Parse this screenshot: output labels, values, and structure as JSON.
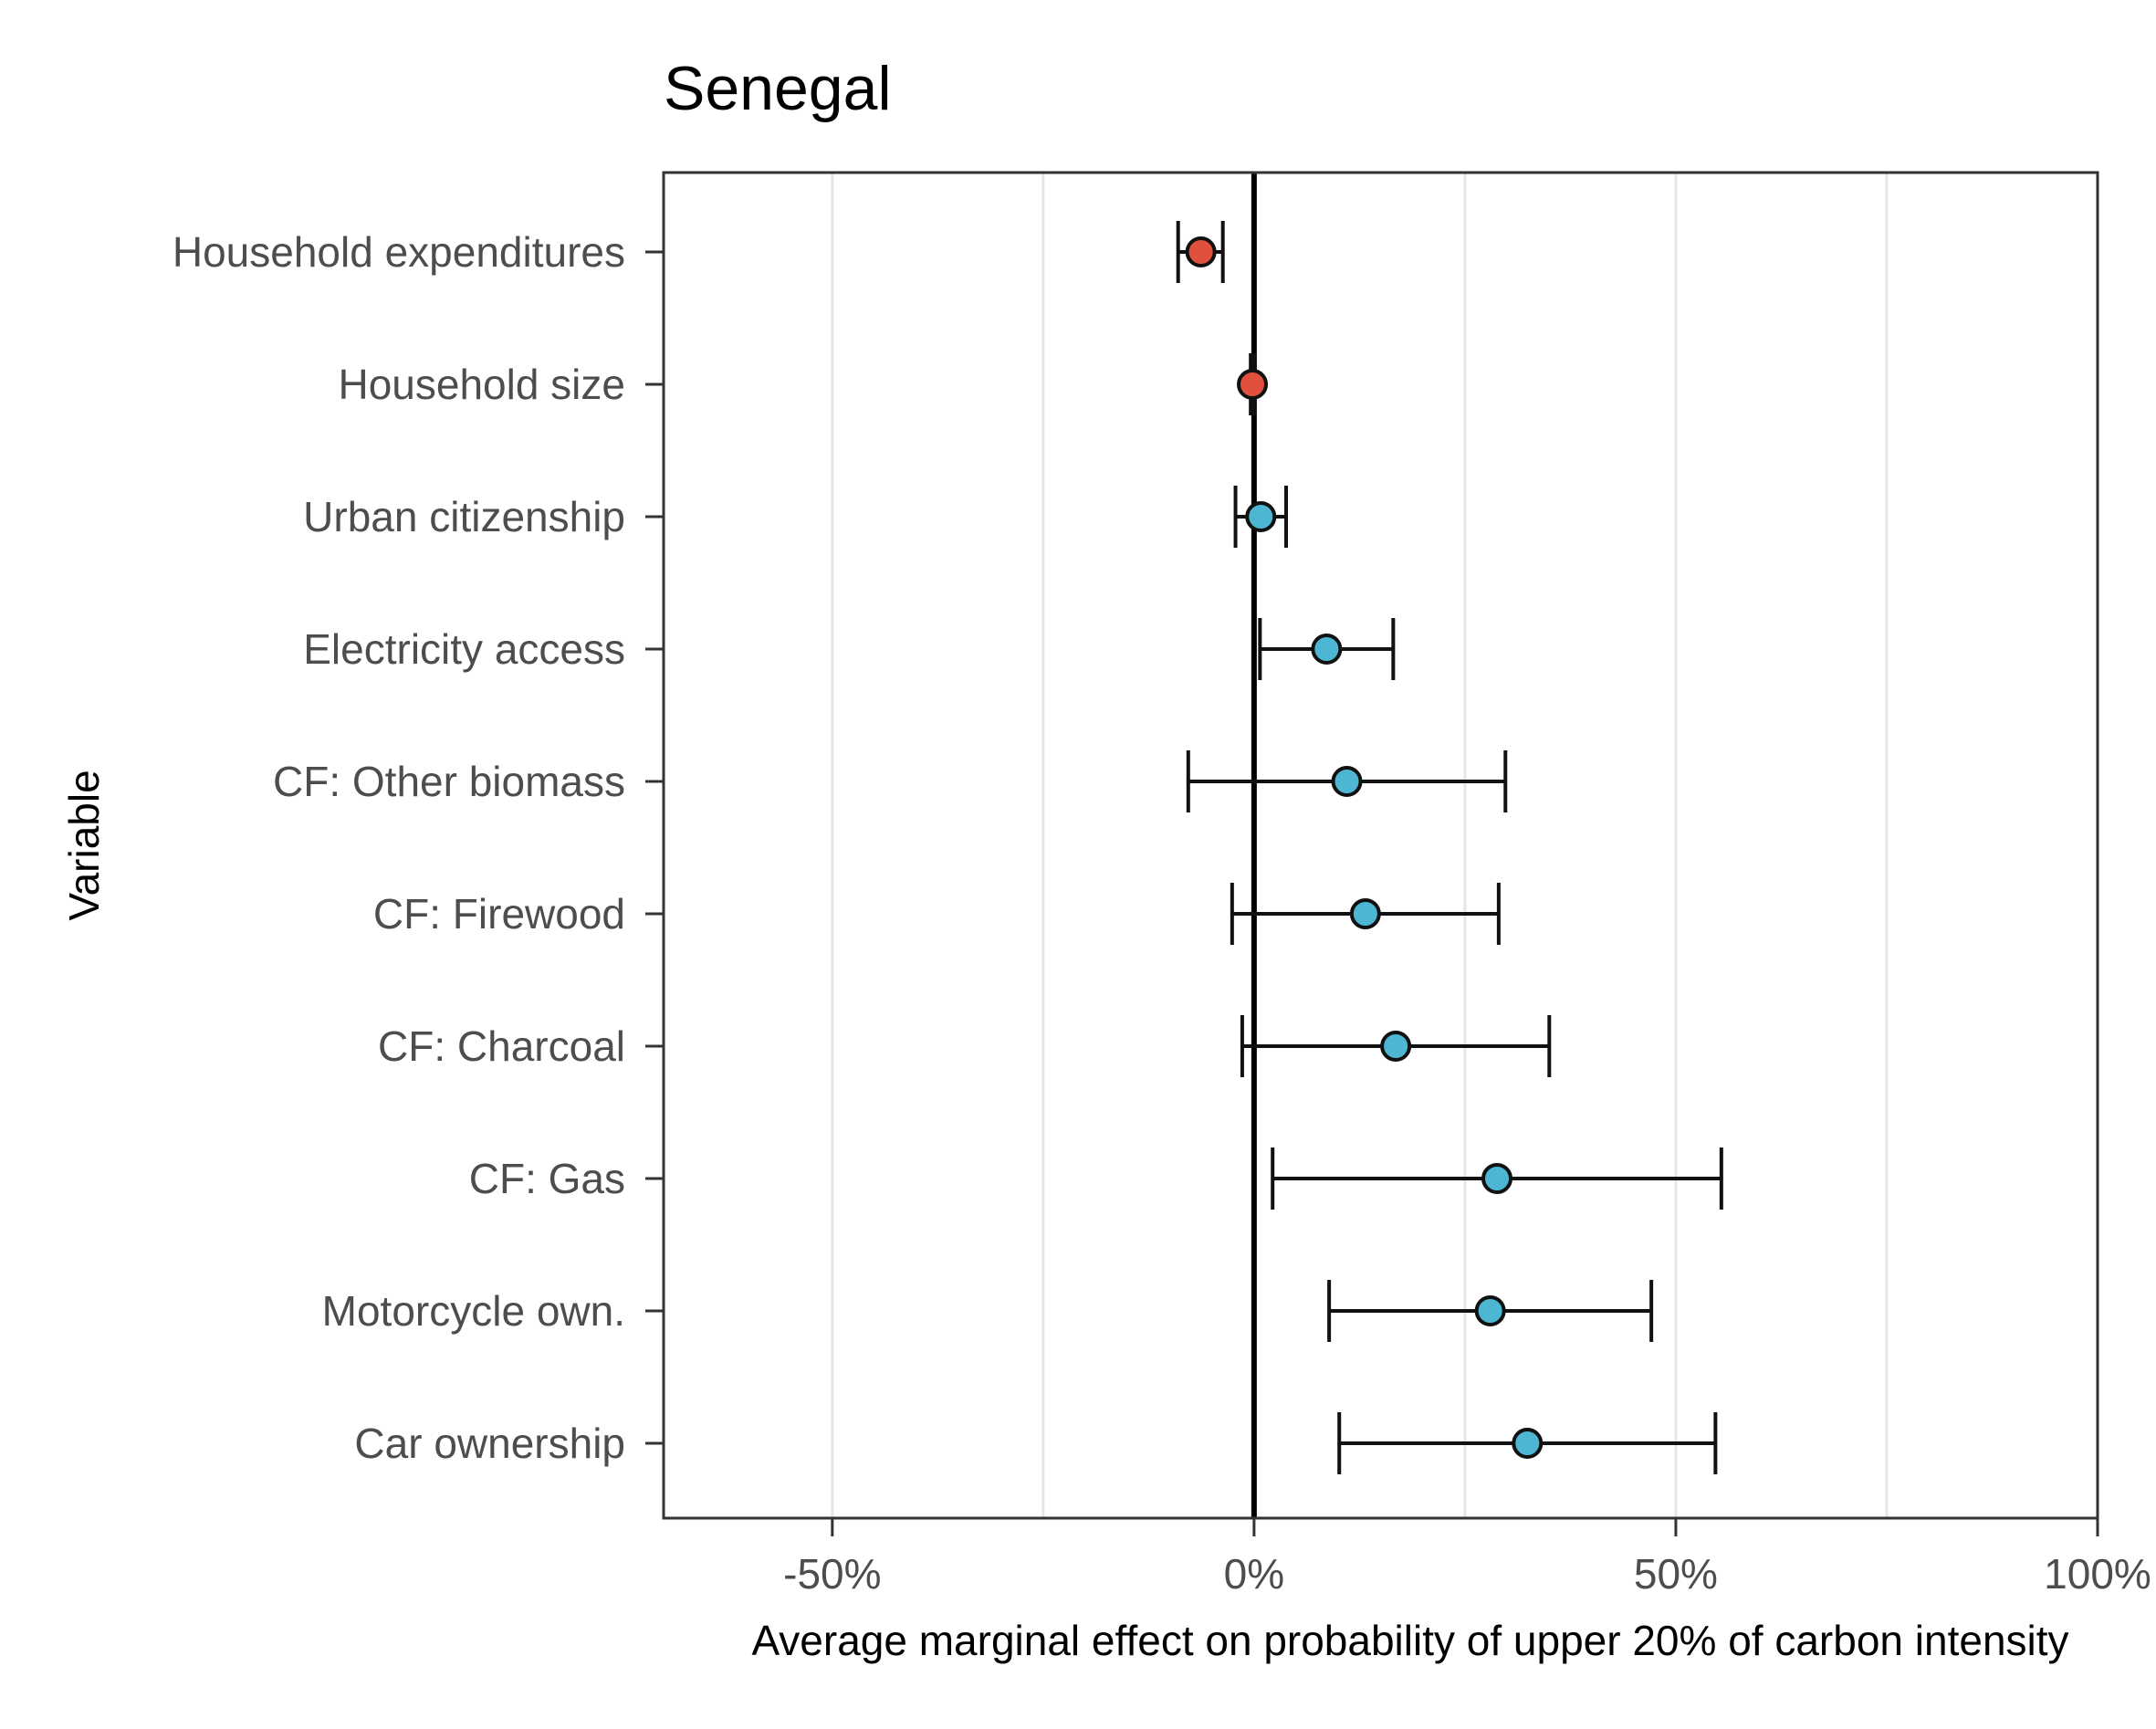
{
  "chart_data": {
    "type": "scatter",
    "title": "Senegal",
    "xlabel": "Average marginal effect on probability of upper 20% of carbon intensity",
    "ylabel": "Variable",
    "xlim": [
      -0.7,
      1.0
    ],
    "x_ticks": [
      -0.5,
      0,
      0.5,
      1.0
    ],
    "x_tick_labels": [
      "-50%",
      "0%",
      "50%",
      "100%"
    ],
    "grid": "vertical major and minor gridlines",
    "reference_line_x": 0,
    "colors": {
      "negative": "#e0503c",
      "positive": "#4db6d3",
      "outline": "#111111",
      "grid": "#e6e6e6"
    },
    "rows": [
      {
        "label": "Household expenditures",
        "estimate": -0.063,
        "ci_low": -0.09,
        "ci_high": -0.037,
        "color": "#e0503c"
      },
      {
        "label": "Household size",
        "estimate": -0.002,
        "ci_low": -0.004,
        "ci_high": 0.0,
        "color": "#e0503c"
      },
      {
        "label": "Urban citizenship",
        "estimate": 0.008,
        "ci_low": -0.022,
        "ci_high": 0.038,
        "color": "#4db6d3"
      },
      {
        "label": "Electricity access",
        "estimate": 0.086,
        "ci_low": 0.007,
        "ci_high": 0.165,
        "color": "#4db6d3"
      },
      {
        "label": "CF: Other biomass",
        "estimate": 0.11,
        "ci_low": -0.078,
        "ci_high": 0.298,
        "color": "#4db6d3"
      },
      {
        "label": "CF: Firewood",
        "estimate": 0.132,
        "ci_low": -0.026,
        "ci_high": 0.29,
        "color": "#4db6d3"
      },
      {
        "label": "CF: Charcoal",
        "estimate": 0.168,
        "ci_low": -0.014,
        "ci_high": 0.35,
        "color": "#4db6d3"
      },
      {
        "label": "CF: Gas",
        "estimate": 0.288,
        "ci_low": 0.022,
        "ci_high": 0.554,
        "color": "#4db6d3"
      },
      {
        "label": "Motorcycle own.",
        "estimate": 0.28,
        "ci_low": 0.089,
        "ci_high": 0.471,
        "color": "#4db6d3"
      },
      {
        "label": "Car ownership",
        "estimate": 0.324,
        "ci_low": 0.101,
        "ci_high": 0.547,
        "color": "#4db6d3"
      }
    ]
  }
}
